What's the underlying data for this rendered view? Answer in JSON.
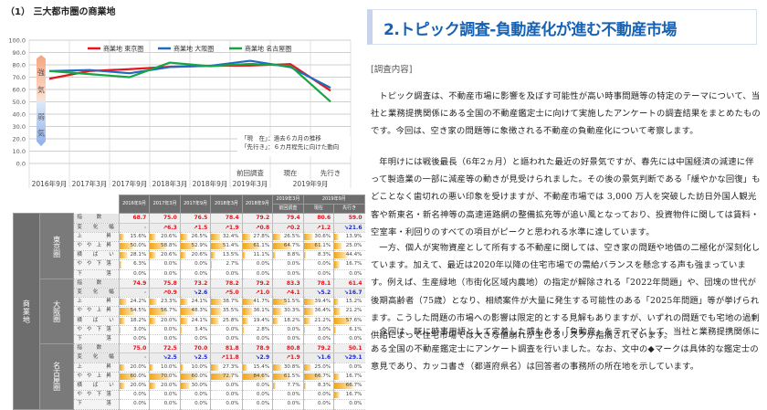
{
  "left": {
    "section_title": "（1） 三大都市圏の商業地",
    "chart_data": {
      "type": "line",
      "title": "",
      "xlabel": "",
      "ylabel": "",
      "ylim": [
        0,
        100
      ],
      "yticks": [
        "0.0",
        "10.0",
        "20.0",
        "30.0",
        "40.0",
        "50.0",
        "60.0",
        "70.0",
        "80.0",
        "90.0",
        "100.0"
      ],
      "categories": [
        "2016年9月",
        "2017年3月",
        "2017年9月",
        "2018年3月",
        "2018年9月",
        "前回調査",
        "現在",
        "先行き"
      ],
      "x_group_labels": [
        "2016年9月",
        "2017年3月",
        "2017年9月",
        "2018年3月",
        "2018年9月",
        "2019年3月",
        "2019年9月"
      ],
      "legend_position": "top",
      "series": [
        {
          "name": "商業地 東京圏",
          "color": "#e8151b",
          "values": [
            68.7,
            75.0,
            76.5,
            78.4,
            79.2,
            79.4,
            80.6,
            59.0
          ]
        },
        {
          "name": "商業地 大阪圏",
          "color": "#1e6cc0",
          "values": [
            74.9,
            75.8,
            73.2,
            78.2,
            79.2,
            83.3,
            78.1,
            61.4
          ]
        },
        {
          "name": "商業地 名古屋圏",
          "color": "#17a443",
          "values": [
            75.0,
            72.5,
            70.0,
            81.8,
            78.9,
            80.8,
            79.2,
            50.1
          ]
        }
      ],
      "mood_labels": {
        "strong": [
          "強",
          "気"
        ],
        "weak": [
          "弱",
          "気"
        ]
      },
      "notes": [
        "「現　在」：過去６カ月の推移",
        "「先行き」：６カ月程先に向けた動向"
      ],
      "grid": true
    },
    "table": {
      "headers": [
        "2016年9月",
        "2017年3月",
        "2017年9月",
        "2018年3月",
        "2018年9月",
        "2019年3月",
        "2019年9月"
      ],
      "subheaders": {
        "prev": "前回調査",
        "now": "現在",
        "future": "先行き"
      },
      "category_label": "商業地",
      "row_labels": [
        "指　数",
        "変 化 幅",
        "上　　昇",
        "やや上昇",
        "横 ば い",
        "やや下落",
        "下　　落"
      ],
      "regions": [
        {
          "name": "東京圏",
          "index": [
            "68.7",
            "75.0",
            "76.5",
            "78.4",
            "79.2",
            "79.4",
            "80.6",
            "59.0"
          ],
          "change": [
            {
              "t": "-",
              "d": "neu"
            },
            {
              "t": "↗6.3",
              "d": "up"
            },
            {
              "t": "↗1.5",
              "d": "up"
            },
            {
              "t": "↗1.9",
              "d": "up"
            },
            {
              "t": "↗0.8",
              "d": "up"
            },
            {
              "t": "↗0.2",
              "d": "up"
            },
            {
              "t": "↗1.2",
              "d": "up"
            },
            {
              "t": "↘21.6",
              "d": "dn"
            }
          ],
          "rows": [
            [
              15.6,
              20.6,
              26.5,
              32.4,
              27.8,
              26.5,
              30.6,
              13.9
            ],
            [
              50.0,
              58.8,
              52.9,
              51.4,
              61.1,
              64.7,
              61.1,
              25.0
            ],
            [
              28.1,
              20.6,
              20.6,
              13.5,
              11.1,
              8.8,
              8.3,
              44.4
            ],
            [
              6.3,
              0.0,
              0.0,
              2.7,
              0.0,
              0.0,
              0.0,
              16.7
            ],
            [
              0.0,
              0.0,
              0.0,
              0.0,
              0.0,
              0.0,
              0.0,
              0.0
            ]
          ]
        },
        {
          "name": "大阪圏",
          "index": [
            "74.9",
            "75.8",
            "73.2",
            "78.2",
            "79.2",
            "83.3",
            "78.1",
            "61.4"
          ],
          "change": [
            {
              "t": "-",
              "d": "neu"
            },
            {
              "t": "↗0.9",
              "d": "up"
            },
            {
              "t": "↘2.6",
              "d": "dn"
            },
            {
              "t": "↗5.0",
              "d": "up"
            },
            {
              "t": "↗1.0",
              "d": "up"
            },
            {
              "t": "↗4.1",
              "d": "up"
            },
            {
              "t": "↘5.2",
              "d": "dn"
            },
            {
              "t": "↘16.7",
              "d": "dn"
            }
          ],
          "rows": [
            [
              24.2,
              23.3,
              24.1,
              38.7,
              41.7,
              51.5,
              39.4,
              15.2
            ],
            [
              54.5,
              56.7,
              48.3,
              35.5,
              36.1,
              30.3,
              36.4,
              21.2
            ],
            [
              18.2,
              20.0,
              24.1,
              25.8,
              19.4,
              18.2,
              21.2,
              57.6
            ],
            [
              3.0,
              0.0,
              3.4,
              0.0,
              2.8,
              0.0,
              3.0,
              6.1
            ],
            [
              0.0,
              0.0,
              0.0,
              0.0,
              0.0,
              0.0,
              0.0,
              0.0
            ]
          ]
        },
        {
          "name": "名古屋圏",
          "index": [
            "75.0",
            "72.5",
            "70.0",
            "81.8",
            "78.9",
            "80.8",
            "79.2",
            "50.1"
          ],
          "change": [
            {
              "t": "-",
              "d": "neu"
            },
            {
              "t": "↘2.5",
              "d": "dn"
            },
            {
              "t": "↘2.5",
              "d": "dn"
            },
            {
              "t": "↗11.8",
              "d": "up"
            },
            {
              "t": "↘2.9",
              "d": "dn"
            },
            {
              "t": "↗1.9",
              "d": "up"
            },
            {
              "t": "↘1.6",
              "d": "dn"
            },
            {
              "t": "↘29.1",
              "d": "dn"
            }
          ],
          "rows": [
            [
              20.0,
              10.0,
              10.0,
              27.3,
              15.4,
              30.8,
              25.0,
              0.0
            ],
            [
              60.0,
              70.0,
              60.0,
              72.7,
              84.6,
              61.5,
              66.7,
              16.7
            ],
            [
              20.0,
              20.0,
              30.0,
              0.0,
              0.0,
              7.7,
              8.3,
              66.7
            ],
            [
              0.0,
              0.0,
              0.0,
              0.0,
              0.0,
              0.0,
              0.0,
              16.7
            ],
            [
              0.0,
              0.0,
              0.0,
              0.0,
              0.0,
              0.0,
              0.0,
              0.0
            ]
          ]
        }
      ]
    }
  },
  "right": {
    "heading": "2.トピック調査-負動産化が進む不動産市場",
    "sub_label": "[調査内容]",
    "paragraphs": [
      "トピック調査は、不動産市場に影響を及ぼす可能性が高い時事問題等の特定のテーマについて、当社と業務提携関係にある全国の不動産鑑定士に向けて実施したアンケートの調査結果をまとめたものです。今回は、空き家の問題等に象徴される不動産の負動産化について考察します。",
      "年明けには戦後最長（6年2ヵ月）と謳われた最近の好景気ですが、春先には中国経済の減速に伴って製造業の一部に減産等の動きが見受けられました。その後の景気判断である「緩やかな回復」もどことなく歯切れの悪い印象を受けますが、不動産市場では 3,000 万人を突破した訪日外国人観光客や新東名・新名神等の高速道路網の整備拡充等が追い風となっており、投資物件に関しては賃料・空室率・利回りのすべての項目がピークと思われる水準に達しています。",
      "一方、個人が実物資産として所有する不動産に関しては、空き家の問題や地価の二極化が深刻化しています。加えて、最近は2020年以降の住宅市場での需給バランスを懸念する声も強まっています。例えば、生産緑地（市街化区域内農地）の指定が解除される「2022年問題」や、団塊の世代が後期高齢者（75歳）となり、相続案件が大量に発生する可能性のある「2025年問題」等が挙げられます。こうした問題の市場への影響は限定的とする見解もありますが、いずれの問題でも宅地の過剰供給によって住宅市場では大きな値崩れが生じるリスクが指摘されています。",
      "今回は、既に時事用語として定着した感もある「負動産」をテーマとして、当社と業務提携関係にある全国の不動産鑑定士にアンケート調査を行いました。なお、文中の◆マークは具体的な鑑定士の意見であり、カッコ書き（都道府県名）は回答者の事務所の所在地を示しています。"
    ]
  }
}
